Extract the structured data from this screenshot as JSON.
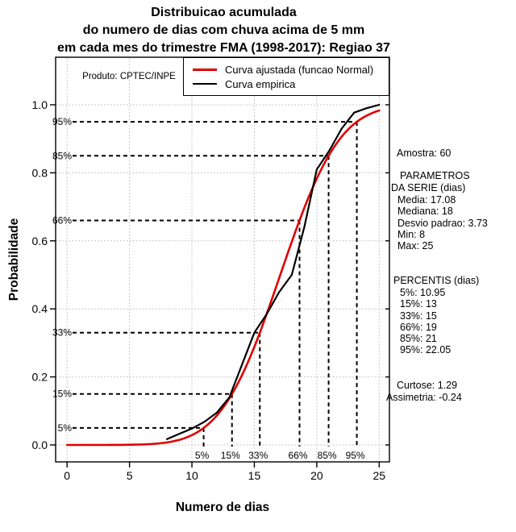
{
  "title": {
    "line1": "Distribuicao acumulada",
    "line2": "do numero de dias com chuva acima de 5 mm",
    "line3": "em cada mes do trimestre FMA (1998-2017): Regiao 37"
  },
  "chart_data": {
    "type": "line",
    "title": "Distribuicao acumulada do numero de dias com chuva acima de 5 mm em cada mes do trimestre FMA (1998-2017): Regiao 37",
    "xlabel": "Numero de dias",
    "ylabel": "Probabilidade",
    "xlim": [
      0,
      25
    ],
    "ylim": [
      0,
      1
    ],
    "x_ticks": [
      {
        "label": "0",
        "value": 0
      },
      {
        "label": "5",
        "value": 5
      },
      {
        "label": "10",
        "value": 10
      },
      {
        "label": "15",
        "value": 15
      },
      {
        "label": "20",
        "value": 20
      },
      {
        "label": "25",
        "value": 25
      }
    ],
    "y_ticks": [
      {
        "label": "0.0",
        "value": 0.0
      },
      {
        "label": "0.2",
        "value": 0.2
      },
      {
        "label": "0.4",
        "value": 0.4
      },
      {
        "label": "0.6",
        "value": 0.6
      },
      {
        "label": "0.8",
        "value": 0.8
      },
      {
        "label": "1.0",
        "value": 1.0
      }
    ],
    "grid": "dashed light gray at every tick",
    "inset_label": "Produto: CPTEC/INPE",
    "legend": {
      "position": "top-inside",
      "items": [
        {
          "label": "Curva ajustada (funcao Normal)",
          "color": "#e00000"
        },
        {
          "label": "Curva empirica",
          "color": "#000000"
        }
      ]
    },
    "series": [
      {
        "name": "Curva ajustada (funcao Normal)",
        "kind": "normal-cdf",
        "mean": 17.08,
        "sd": 3.73,
        "x_range": [
          0,
          25
        ],
        "color": "#e00000"
      },
      {
        "name": "Curva empirica",
        "kind": "polyline",
        "color": "#000000",
        "points": [
          [
            8,
            0.017
          ],
          [
            9,
            0.033
          ],
          [
            10,
            0.048
          ],
          [
            11,
            0.068
          ],
          [
            12,
            0.095
          ],
          [
            13,
            0.14
          ],
          [
            14,
            0.235
          ],
          [
            15,
            0.33
          ],
          [
            16,
            0.385
          ],
          [
            17,
            0.45
          ],
          [
            18,
            0.5
          ],
          [
            19,
            0.64
          ],
          [
            20,
            0.81
          ],
          [
            21,
            0.865
          ],
          [
            22,
            0.93
          ],
          [
            23,
            0.977
          ],
          [
            24,
            0.99
          ],
          [
            25,
            1.0
          ]
        ]
      }
    ],
    "percentile_guides": [
      {
        "label": "5%",
        "p": 0.05,
        "x_days": 10.94
      },
      {
        "label": "15%",
        "p": 0.15,
        "x_days": 13.21
      },
      {
        "label": "33%",
        "p": 0.33,
        "x_days": 15.44
      },
      {
        "label": "66%",
        "p": 0.66,
        "x_days": 18.62
      },
      {
        "label": "85%",
        "p": 0.85,
        "x_days": 20.95
      },
      {
        "label": "95%",
        "p": 0.95,
        "x_days": 23.21
      }
    ]
  },
  "side_panel": {
    "lines": [
      {
        "text": "Amostra: 60"
      },
      {
        "text": "PARAMETROS"
      },
      {
        "text": "DA SERIE (dias)"
      },
      {
        "text": "Media: 17.08"
      },
      {
        "text": "Mediana: 18"
      },
      {
        "text": "Desvio padrao: 3.73"
      },
      {
        "text": "Min: 8"
      },
      {
        "text": "Max: 25"
      },
      {
        "text": "PERCENTIS (dias)"
      },
      {
        "text": "5%: 10.95"
      },
      {
        "text": "15%: 13"
      },
      {
        "text": "33%: 15"
      },
      {
        "text": "66%: 19"
      },
      {
        "text": "85%: 21"
      },
      {
        "text": "95%: 22.05"
      },
      {
        "text": "Curtose: 1.29"
      },
      {
        "text": "Assimetria: -0.24"
      }
    ]
  }
}
